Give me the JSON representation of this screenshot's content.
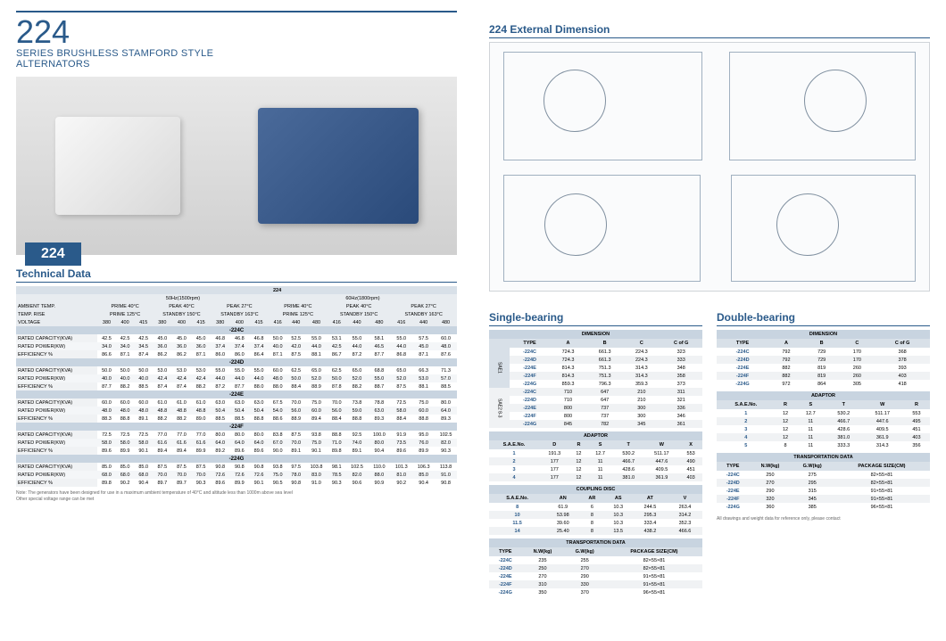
{
  "header": {
    "series_number": "224",
    "title_line1": "SERIES BRUSHLESS STAMFORD STYLE",
    "title_line2": "ALTERNATORS",
    "badge": "224"
  },
  "sections": {
    "tech_data": "Technical Data",
    "ext_dim": "224 External Dimension",
    "single_bearing": "Single-bearing",
    "double_bearing": "Double-bearing"
  },
  "tech_table": {
    "top_label": "224",
    "freq_groups": [
      "50Hz(1500rpm)",
      "60Hz(1800rpm)"
    ],
    "cond_labels": [
      "PRIME 40°C",
      "PEAK 40°C",
      "PEAK 27°C",
      "PRIME 40°C",
      "PEAK 40°C",
      "PEAK 27°C"
    ],
    "temp_labels": [
      "PRIME 125°C",
      "STANDBY 150°C",
      "STANDBY 163°C",
      "PRIME 125°C",
      "STANDBY 150°C",
      "STANDBY 163°C"
    ],
    "voltages": [
      "380",
      "400",
      "415",
      "380",
      "400",
      "415",
      "380",
      "400",
      "415",
      "416",
      "440",
      "480",
      "416",
      "440",
      "480",
      "416",
      "440",
      "480"
    ],
    "row_headers": {
      "ambient": "AMBIENT TEMP.",
      "temp_rise": "TEMP. RISE",
      "voltage": "VOLTAGE",
      "capacity": "RATED CAPACITY(KVA)",
      "power": "RATED POWER(KW)",
      "eff": "EFFICIENCY %"
    },
    "models": [
      {
        "name": "-224C",
        "rows": [
          [
            "42.5",
            "42.5",
            "42.5",
            "45.0",
            "45.0",
            "45.0",
            "46.8",
            "46.8",
            "46.8",
            "50.0",
            "52.5",
            "55.0",
            "53.1",
            "55.0",
            "58.1",
            "55.0",
            "57.5",
            "60.0"
          ],
          [
            "34.0",
            "34.0",
            "34.5",
            "36.0",
            "36.0",
            "36.0",
            "37.4",
            "37.4",
            "37.4",
            "40.0",
            "42.0",
            "44.0",
            "42.5",
            "44.0",
            "46.5",
            "44.0",
            "45.0",
            "48.0"
          ],
          [
            "86.6",
            "87.1",
            "87.4",
            "86.2",
            "86.2",
            "87.1",
            "86.0",
            "86.0",
            "86.4",
            "87.1",
            "87.5",
            "88.1",
            "86.7",
            "87.2",
            "87.7",
            "86.8",
            "87.1",
            "87.6"
          ]
        ]
      },
      {
        "name": "-224D",
        "rows": [
          [
            "50.0",
            "50.0",
            "50.0",
            "53.0",
            "53.0",
            "53.0",
            "55.0",
            "55.0",
            "55.0",
            "60.0",
            "62.5",
            "65.0",
            "62.5",
            "65.0",
            "68.8",
            "65.0",
            "66.3",
            "71.3"
          ],
          [
            "40.0",
            "40.0",
            "40.0",
            "42.4",
            "42.4",
            "42.4",
            "44.0",
            "44.0",
            "44.0",
            "48.0",
            "50.0",
            "52.0",
            "50.0",
            "52.0",
            "55.0",
            "52.0",
            "53.0",
            "57.0"
          ],
          [
            "87.7",
            "88.2",
            "88.5",
            "87.4",
            "87.4",
            "88.2",
            "87.2",
            "87.7",
            "88.0",
            "88.0",
            "88.4",
            "88.9",
            "87.8",
            "88.2",
            "88.7",
            "87.5",
            "88.1",
            "88.5"
          ]
        ]
      },
      {
        "name": "-224E",
        "rows": [
          [
            "60.0",
            "60.0",
            "60.0",
            "61.0",
            "61.0",
            "61.0",
            "63.0",
            "63.0",
            "63.0",
            "67.5",
            "70.0",
            "75.0",
            "70.0",
            "73.8",
            "78.8",
            "72.5",
            "75.0",
            "80.0"
          ],
          [
            "48.0",
            "48.0",
            "48.0",
            "48.8",
            "48.8",
            "48.8",
            "50.4",
            "50.4",
            "50.4",
            "54.0",
            "56.0",
            "60.0",
            "56.0",
            "59.0",
            "63.0",
            "58.0",
            "60.0",
            "64.0"
          ],
          [
            "88.3",
            "88.8",
            "89.1",
            "88.2",
            "88.2",
            "89.0",
            "88.5",
            "88.5",
            "88.8",
            "88.6",
            "88.9",
            "89.4",
            "88.4",
            "88.8",
            "89.3",
            "88.4",
            "88.8",
            "89.3"
          ]
        ]
      },
      {
        "name": "-224F",
        "rows": [
          [
            "72.5",
            "72.5",
            "72.5",
            "77.0",
            "77.0",
            "77.0",
            "80.0",
            "80.0",
            "80.0",
            "83.8",
            "87.5",
            "93.8",
            "88.8",
            "92.5",
            "100.0",
            "91.9",
            "95.0",
            "102.5"
          ],
          [
            "58.0",
            "58.0",
            "58.0",
            "61.6",
            "61.6",
            "61.6",
            "64.0",
            "64.0",
            "64.0",
            "67.0",
            "70.0",
            "75.0",
            "71.0",
            "74.0",
            "80.0",
            "73.5",
            "76.0",
            "82.0"
          ],
          [
            "89.6",
            "89.9",
            "90.1",
            "89.4",
            "89.4",
            "89.9",
            "89.2",
            "89.6",
            "89.6",
            "90.0",
            "89.1",
            "90.1",
            "89.8",
            "89.1",
            "90.4",
            "89.6",
            "89.9",
            "90.3"
          ]
        ]
      },
      {
        "name": "-224G",
        "rows": [
          [
            "85.0",
            "85.0",
            "85.0",
            "87.5",
            "87.5",
            "87.5",
            "90.8",
            "90.8",
            "90.8",
            "93.8",
            "97.5",
            "103.8",
            "98.1",
            "102.5",
            "110.0",
            "101.3",
            "106.3",
            "113.8"
          ],
          [
            "68.0",
            "68.0",
            "68.0",
            "70.0",
            "70.0",
            "70.0",
            "72.6",
            "72.6",
            "72.6",
            "75.0",
            "78.0",
            "83.0",
            "78.5",
            "82.0",
            "88.0",
            "81.0",
            "85.0",
            "91.0"
          ],
          [
            "89.8",
            "90.2",
            "90.4",
            "89.7",
            "89.7",
            "90.3",
            "89.6",
            "89.9",
            "90.1",
            "90.5",
            "90.8",
            "91.0",
            "90.3",
            "90.6",
            "90.9",
            "90.2",
            "90.4",
            "90.8"
          ]
        ]
      }
    ]
  },
  "single_bearing": {
    "dimension": {
      "headers": [
        "TYPE",
        "A",
        "B",
        "C",
        "C of G"
      ],
      "side_groups": [
        "SAE1",
        "SAE2 8-3"
      ],
      "rows": [
        [
          "-224C",
          "724.3",
          "661.3",
          "224.3",
          "323"
        ],
        [
          "-224D",
          "724.3",
          "661.3",
          "224.3",
          "333"
        ],
        [
          "-224E",
          "814.3",
          "751.3",
          "314.3",
          "348"
        ],
        [
          "-224F",
          "814.3",
          "751.3",
          "314.3",
          "358"
        ],
        [
          "-224G",
          "859.3",
          "796.3",
          "359.3",
          "373"
        ],
        [
          "-224C",
          "710",
          "647",
          "210",
          "311"
        ],
        [
          "-224D",
          "710",
          "647",
          "210",
          "321"
        ],
        [
          "-224E",
          "800",
          "737",
          "300",
          "336"
        ],
        [
          "-224F",
          "800",
          "737",
          "300",
          "346"
        ],
        [
          "-224G",
          "845",
          "782",
          "345",
          "361"
        ]
      ]
    },
    "adaptor": {
      "headers": [
        "S.A.E.No.",
        "D",
        "R",
        "S",
        "T",
        "W",
        "X"
      ],
      "rows": [
        [
          "1",
          "191.3",
          "12",
          "12.7",
          "530.2",
          "511.17",
          "553"
        ],
        [
          "2",
          "177",
          "12",
          "11",
          "466.7",
          "447.6",
          "490"
        ],
        [
          "3",
          "177",
          "12",
          "11",
          "428.6",
          "409.5",
          "451"
        ],
        [
          "4",
          "177",
          "12",
          "11",
          "381.0",
          "361.9",
          "403"
        ]
      ]
    },
    "coupling": {
      "headers": [
        "S.A.E.No.",
        "AN",
        "AR",
        "AS",
        "AT",
        "V"
      ],
      "rows": [
        [
          "8",
          "61.9",
          "6",
          "10.3",
          "244.5",
          "263.4"
        ],
        [
          "10",
          "53.98",
          "8",
          "10.3",
          "295.3",
          "314.2"
        ],
        [
          "11.5",
          "39.60",
          "8",
          "10.3",
          "333.4",
          "352.3"
        ],
        [
          "14",
          "25.40",
          "8",
          "13.5",
          "438.2",
          "466.6"
        ]
      ]
    },
    "transport": {
      "headers": [
        "TYPE",
        "N.W(kg)",
        "G.W(kg)",
        "PACKAGE SIZE(CM)"
      ],
      "rows": [
        [
          "-224C",
          "235",
          "255",
          "82×55×81"
        ],
        [
          "-224D",
          "250",
          "270",
          "82×55×81"
        ],
        [
          "-224E",
          "270",
          "290",
          "91×55×81"
        ],
        [
          "-224F",
          "310",
          "330",
          "91×55×81"
        ],
        [
          "-224G",
          "350",
          "370",
          "96×55×81"
        ]
      ]
    }
  },
  "double_bearing": {
    "dimension": {
      "headers": [
        "TYPE",
        "A",
        "B",
        "C",
        "C of G"
      ],
      "rows": [
        [
          "-224C",
          "792",
          "729",
          "170",
          "368"
        ],
        [
          "-224D",
          "792",
          "729",
          "170",
          "378"
        ],
        [
          "-224E",
          "882",
          "819",
          "260",
          "393"
        ],
        [
          "-224F",
          "882",
          "819",
          "260",
          "403"
        ],
        [
          "-224G",
          "972",
          "864",
          "305",
          "418"
        ]
      ]
    },
    "adaptor": {
      "headers": [
        "S.A.E.No.",
        "R",
        "S",
        "T",
        "W",
        "R"
      ],
      "rows": [
        [
          "1",
          "12",
          "12.7",
          "530.2",
          "511.17",
          "553"
        ],
        [
          "2",
          "12",
          "11",
          "466.7",
          "447.6",
          "495"
        ],
        [
          "3",
          "12",
          "11",
          "428.6",
          "409.5",
          "451"
        ],
        [
          "4",
          "12",
          "11",
          "381.0",
          "361.9",
          "403"
        ],
        [
          "5",
          "8",
          "11",
          "333.3",
          "314.3",
          "356"
        ]
      ]
    },
    "transport": {
      "headers": [
        "TYPE",
        "N.W(kg)",
        "G.W(kg)",
        "PACKAGE SIZE(CM)"
      ],
      "rows": [
        [
          "-224C",
          "250",
          "275",
          "82×55×81"
        ],
        [
          "-224D",
          "270",
          "295",
          "82×55×81"
        ],
        [
          "-224E",
          "290",
          "315",
          "91×55×81"
        ],
        [
          "-224F",
          "320",
          "345",
          "91×55×81"
        ],
        [
          "-224G",
          "360",
          "385",
          "96×55×81"
        ]
      ]
    }
  },
  "notes": {
    "left": "Note:   The generators have been designed for use in a maximum ambient temperature of 40°C and altitude less than 1000m above sea level\n            Other special voltage range can be met",
    "right": "All drawings and weight data for reference only, please contact"
  }
}
